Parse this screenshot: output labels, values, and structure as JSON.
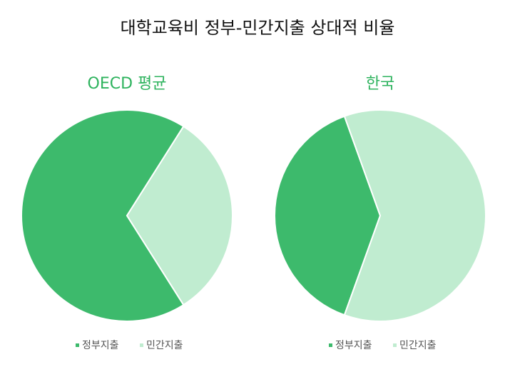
{
  "title": "대학교육비 정부-민간지출 상대적 비율",
  "chart_data": [
    {
      "type": "pie",
      "title": "OECD 평균",
      "categories": [
        "정부지출",
        "민간지출"
      ],
      "values": [
        68,
        32
      ],
      "colors": [
        "#3dba6c",
        "#c0ecd0"
      ]
    },
    {
      "type": "pie",
      "title": "한국",
      "categories": [
        "정부지출",
        "민간지출"
      ],
      "values": [
        39,
        61
      ],
      "colors": [
        "#3dba6c",
        "#c0ecd0"
      ]
    }
  ]
}
